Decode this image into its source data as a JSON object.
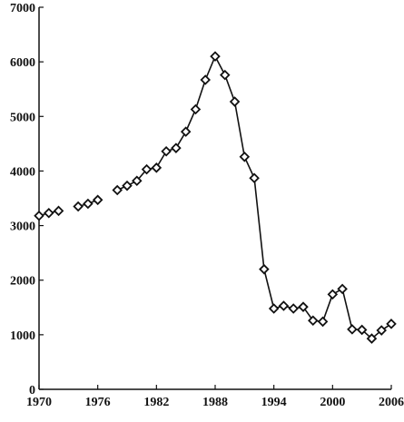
{
  "chart_data": {
    "type": "line",
    "x": [
      1970,
      1971,
      1972,
      1973,
      1974,
      1975,
      1976,
      1977,
      1978,
      1979,
      1980,
      1981,
      1982,
      1983,
      1984,
      1985,
      1986,
      1987,
      1988,
      1989,
      1990,
      1991,
      1992,
      1993,
      1994,
      1995,
      1996,
      1997,
      1998,
      1999,
      2000,
      2001,
      2002,
      2003,
      2004,
      2005,
      2006
    ],
    "values": [
      3180,
      3230,
      3270,
      null,
      3350,
      3400,
      3470,
      null,
      3650,
      3730,
      3820,
      4030,
      4060,
      4360,
      4420,
      4720,
      5130,
      5670,
      6100,
      5760,
      5270,
      4260,
      3870,
      2200,
      1480,
      1530,
      1480,
      1510,
      1260,
      1240,
      1740,
      1840,
      1100,
      1090,
      930,
      1080,
      1200
    ],
    "color": "#111111",
    "xlim": [
      1970,
      2006
    ],
    "xticks": [
      1970,
      1976,
      1982,
      1988,
      1994,
      2000,
      2006
    ],
    "ylim": [
      0,
      7000
    ],
    "yticks": [
      0,
      1000,
      2000,
      3000,
      4000,
      5000,
      6000,
      7000
    ],
    "grid": false
  }
}
